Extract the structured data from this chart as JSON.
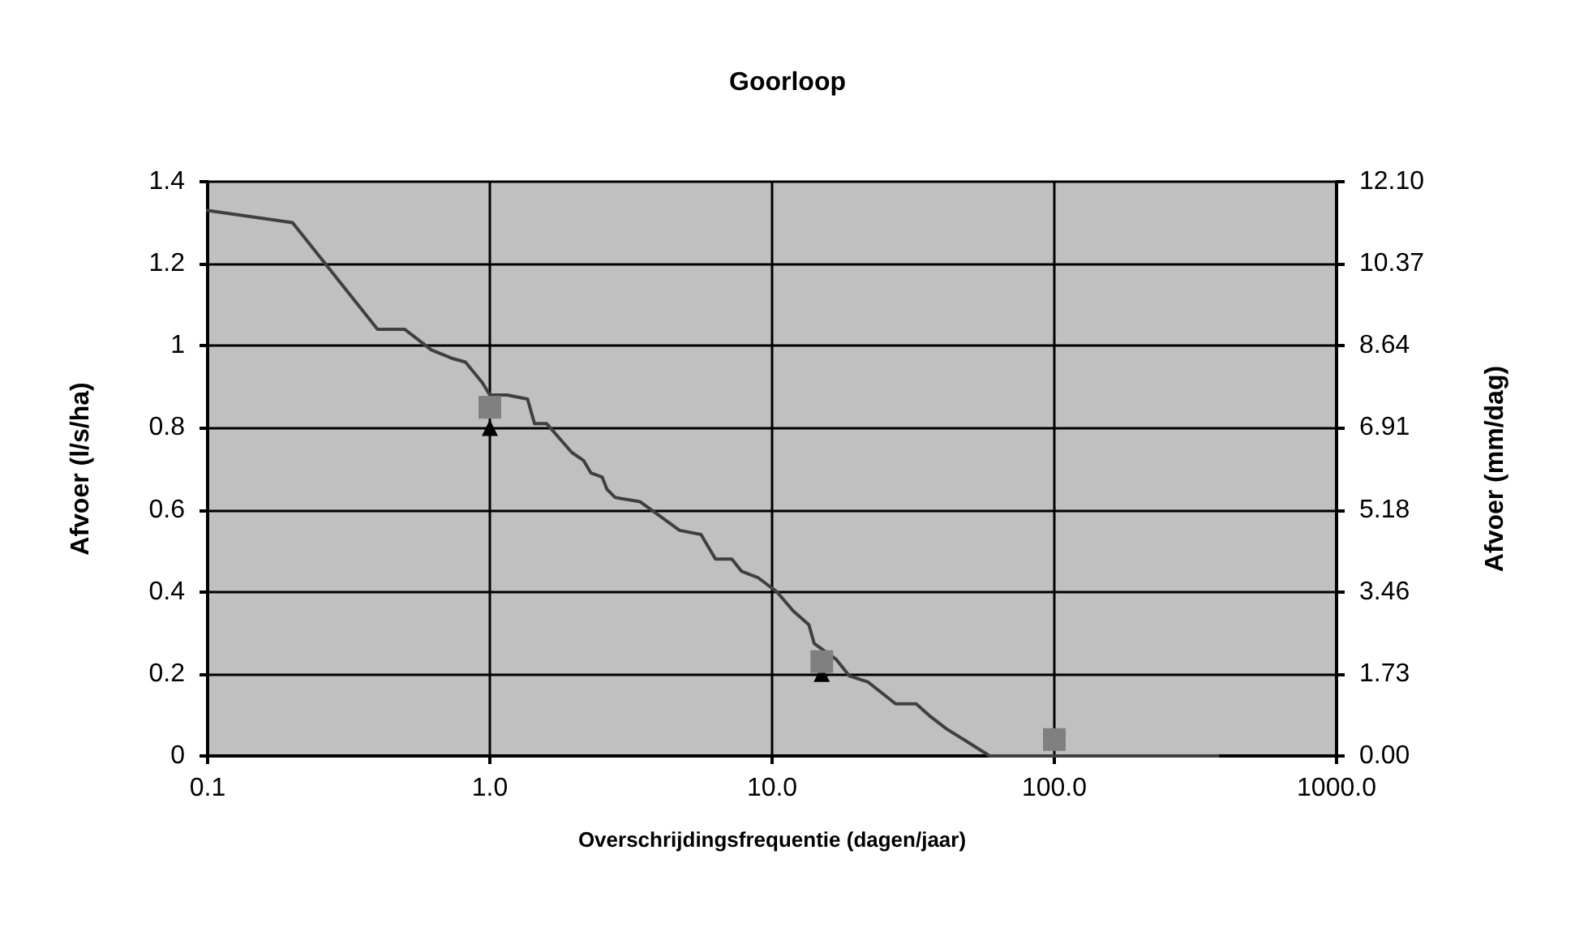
{
  "chart_data": {
    "type": "line",
    "title": "Goorloop",
    "xlabel": "Overschrijdingsfrequentie (dagen/jaar)",
    "ylabel": "Afvoer (l/s/ha)",
    "y2label": "Afvoer (mm/dag)",
    "log": "x",
    "xlim": [
      0.1,
      1000
    ],
    "xticks": [
      {
        "value": 0.1,
        "label": "0.1"
      },
      {
        "value": 1,
        "label": "1.0"
      },
      {
        "value": 10,
        "label": "10.0"
      },
      {
        "value": 100,
        "label": "100.0"
      },
      {
        "value": 1000,
        "label": "1000.0"
      }
    ],
    "ylim": [
      0,
      1.4
    ],
    "yticks": [
      0,
      0.2,
      0.4,
      0.6,
      0.8,
      1,
      1.2,
      1.4
    ],
    "y2lim": [
      0,
      12.096
    ],
    "y2ticks": [
      {
        "value": 0,
        "label": "0.00"
      },
      {
        "value": 1.728,
        "label": "1.73"
      },
      {
        "value": 3.456,
        "label": "3.46"
      },
      {
        "value": 5.184,
        "label": "5.18"
      },
      {
        "value": 6.912,
        "label": "6.91"
      },
      {
        "value": 8.64,
        "label": "8.64"
      },
      {
        "value": 10.368,
        "label": "10.37"
      },
      {
        "value": 12.096,
        "label": "12.10"
      }
    ],
    "grid": true,
    "series": [
      {
        "type": "line",
        "color": "#404040",
        "marker": "none",
        "line_style": "solid",
        "x": [
          0.1,
          0.2,
          0.4,
          0.5,
          0.62,
          0.73,
          0.82,
          0.94,
          1.0,
          1.15,
          1.36,
          1.44,
          1.59,
          1.95,
          2.15,
          2.28,
          2.5,
          2.6,
          2.78,
          3.4,
          4.0,
          4.7,
          5.6,
          6.3,
          7.2,
          7.8,
          8.9,
          10.4,
          11.9,
          13.5,
          14.1,
          16.9,
          18.8,
          21.9,
          27.4,
          32.4,
          36.4,
          41.5,
          48.5,
          59,
          380
        ],
        "values": [
          1.33,
          1.3,
          1.04,
          1.04,
          0.99,
          0.97,
          0.96,
          0.91,
          0.88,
          0.88,
          0.87,
          0.81,
          0.81,
          0.74,
          0.72,
          0.69,
          0.68,
          0.65,
          0.63,
          0.62,
          0.585,
          0.55,
          0.54,
          0.48,
          0.48,
          0.45,
          0.435,
          0.4,
          0.353,
          0.32,
          0.274,
          0.235,
          0.195,
          0.18,
          0.127,
          0.127,
          0.096,
          0.066,
          0.037,
          0,
          0
        ]
      },
      {
        "type": "scatter",
        "color": "#000000",
        "marker": "triangle",
        "x": [
          1,
          15
        ],
        "values": [
          0.8,
          0.2
        ]
      },
      {
        "type": "scatter",
        "color": "#808080",
        "marker": "square",
        "x": [
          1,
          15,
          100
        ],
        "values": [
          0.85,
          0.23,
          0.04
        ]
      }
    ]
  }
}
